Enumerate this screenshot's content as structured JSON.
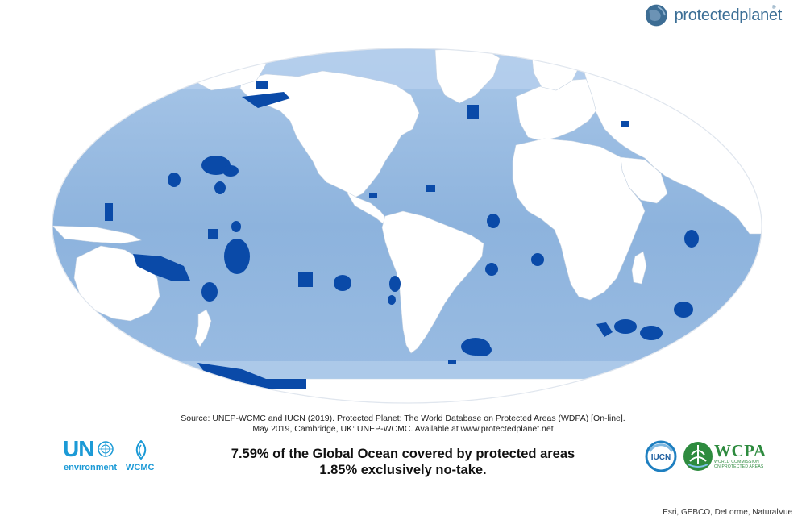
{
  "brand": {
    "name": "protectedplanet",
    "registered": "®"
  },
  "source": {
    "line1": "Source: UNEP-WCMC and IUCN (2019). Protected Planet: The World Database on Protected Areas (WDPA) [On-line].",
    "line2": "May 2019, Cambridge, UK: UNEP-WCMC. Available at www.protectedplanet.net"
  },
  "statistics": {
    "line1": "7.59% of the Global Ocean covered by protected areas",
    "line2": "1.85% exclusively no-take."
  },
  "logos": {
    "un_text": "UN",
    "un_subtext": "environment",
    "wcmc": "WCMC",
    "iucn": "IUCN",
    "wcpa": "WCPA",
    "wcpa_tagline_1": "WORLD COMMISSION",
    "wcpa_tagline_2": "ON PROTECTED AREAS"
  },
  "map": {
    "ocean_color": "#92b8e0",
    "land_color": "#ffffff",
    "protected_area_color": "#0a4aa8",
    "icons": [
      "globe-icon",
      "un-emblem-icon",
      "wcmc-icon",
      "iucn-icon",
      "wcpa-icon"
    ]
  },
  "credits": "Esri, GEBCO, DeLorme, NaturalVue"
}
